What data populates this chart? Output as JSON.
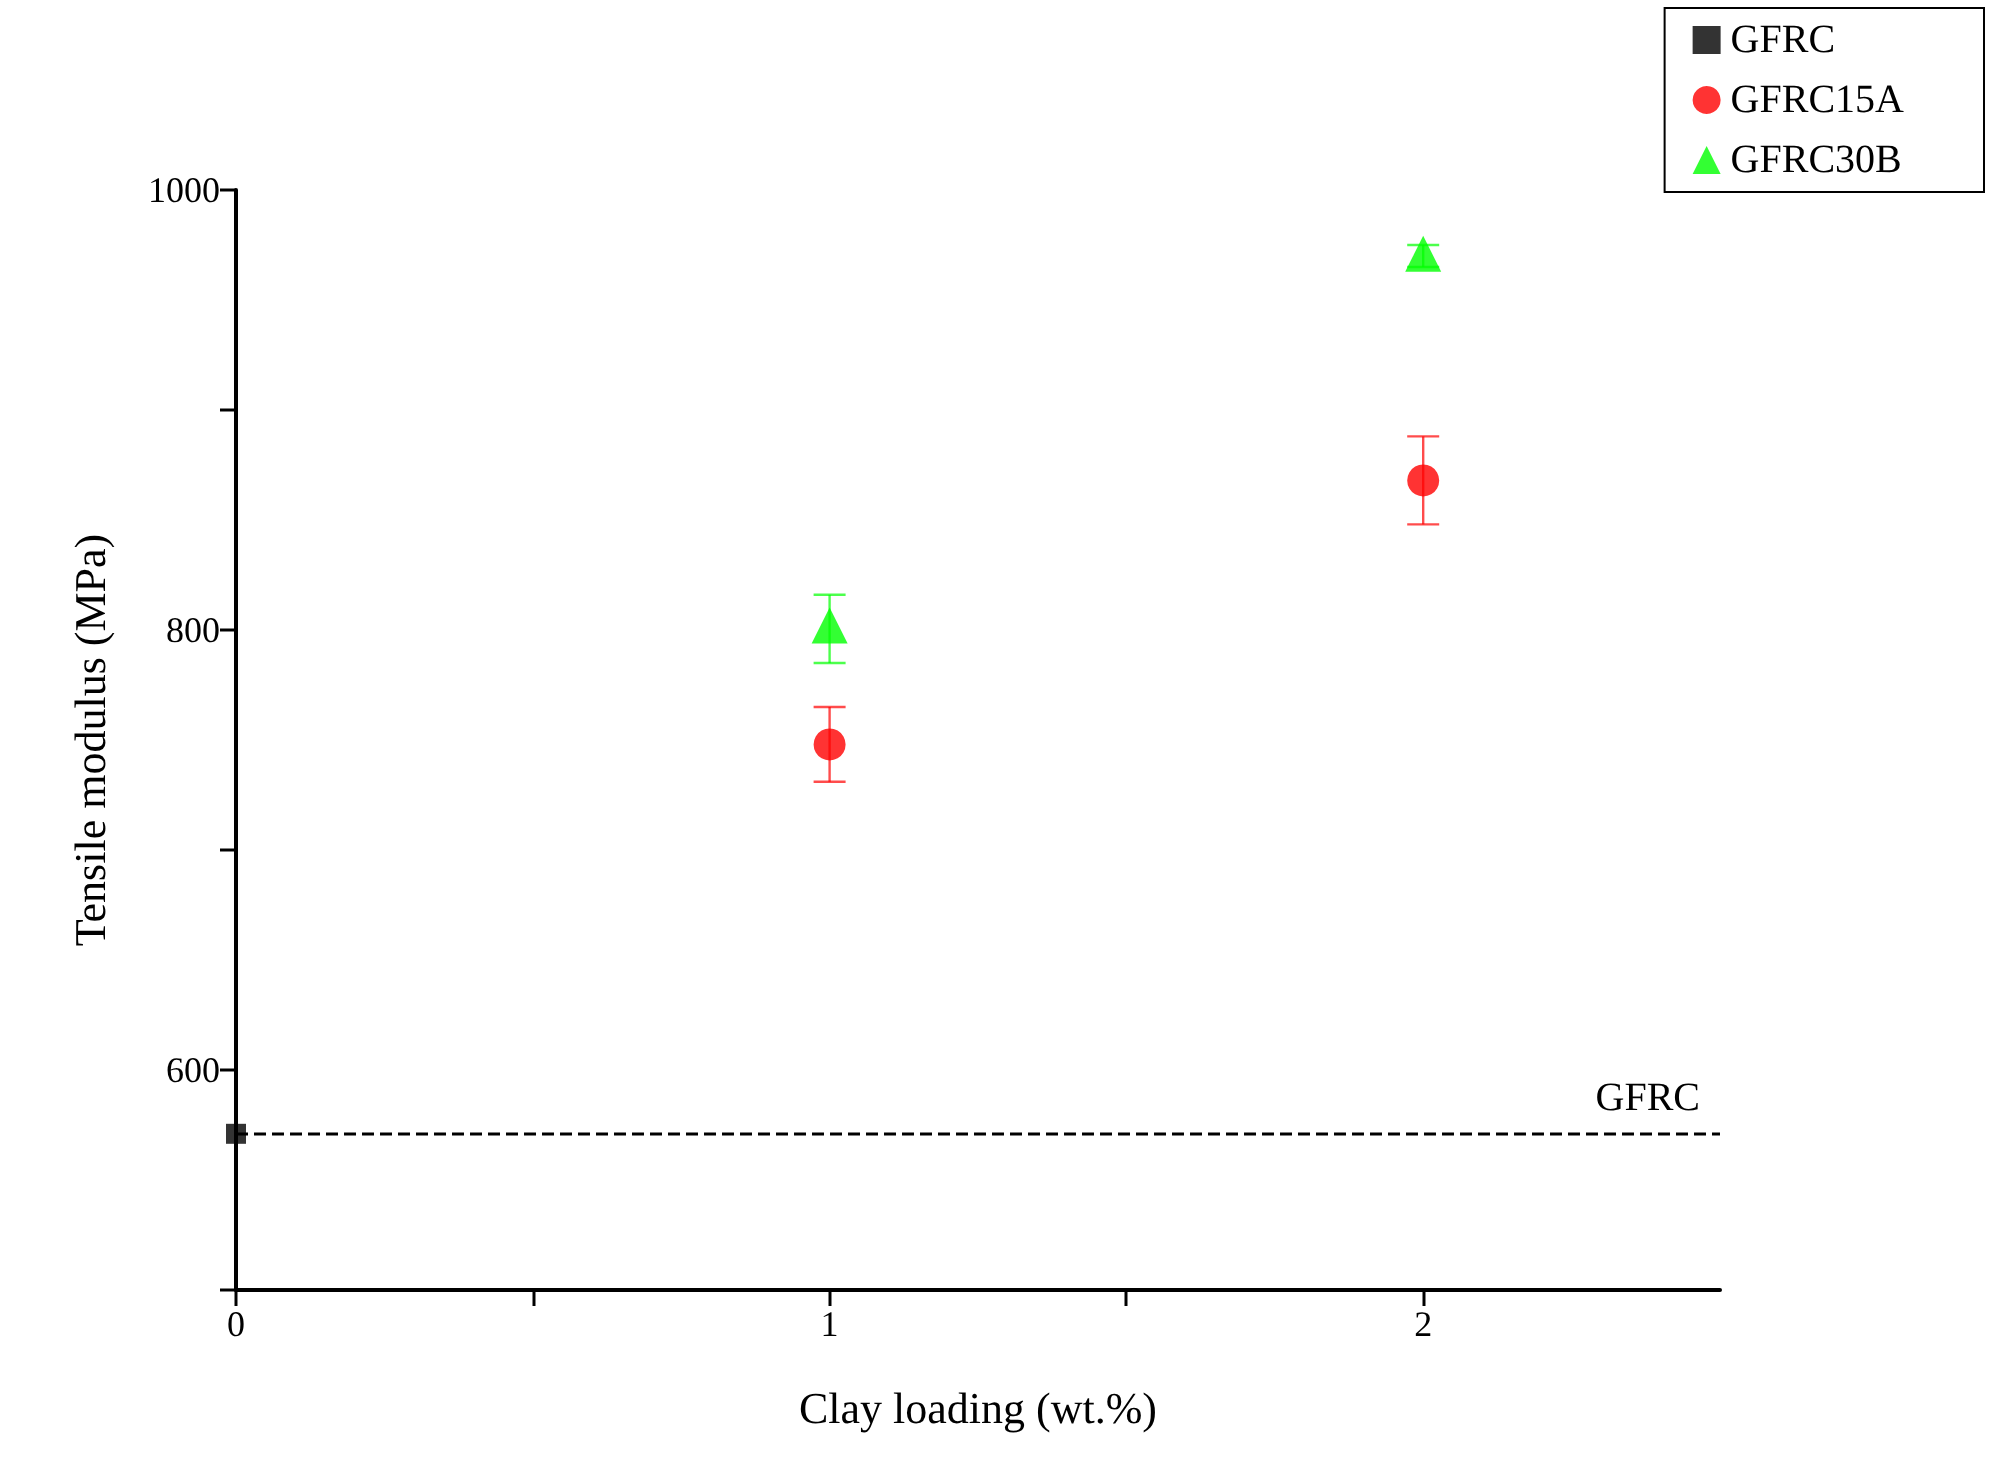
{
  "chart_data": {
    "type": "scatter",
    "xlabel": "Clay loading (wt.%)",
    "ylabel": "Tensile modulus (MPa)",
    "xlim": [
      0,
      2.5
    ],
    "xticks": [
      0,
      {
        "value": 0.5,
        "label": null
      },
      1,
      {
        "value": 1.5,
        "label": null
      },
      2
    ],
    "ylim": [
      500,
      1000
    ],
    "yticks": [
      {
        "value": 500,
        "label": null
      },
      600,
      {
        "value": 700,
        "label": null
      },
      800,
      {
        "value": 900,
        "label": null
      },
      1000
    ],
    "grid": false,
    "legend": "top right",
    "series": [
      {
        "name": "GFRC",
        "color": "#000000",
        "marker": "square",
        "x": [
          0
        ],
        "values": [
          571
        ]
      },
      {
        "name": "GFRC15A",
        "color": "#ff0000",
        "marker": "circle",
        "x": [
          1,
          2
        ],
        "values": [
          748,
          868
        ],
        "errors": [
          [
            731,
            765
          ],
          [
            848,
            888
          ]
        ]
      },
      {
        "name": "GFRC30B",
        "color": "#00ff00",
        "marker": "triangle",
        "x": [
          1,
          2
        ],
        "values": [
          802,
          971
        ],
        "errors": [
          [
            785,
            816
          ],
          [
            965,
            975
          ]
        ]
      }
    ],
    "ref_lines": [
      {
        "axis": "y",
        "value": 571,
        "label": "GFRC",
        "color": "#000000",
        "line_style": "dashed"
      }
    ]
  }
}
